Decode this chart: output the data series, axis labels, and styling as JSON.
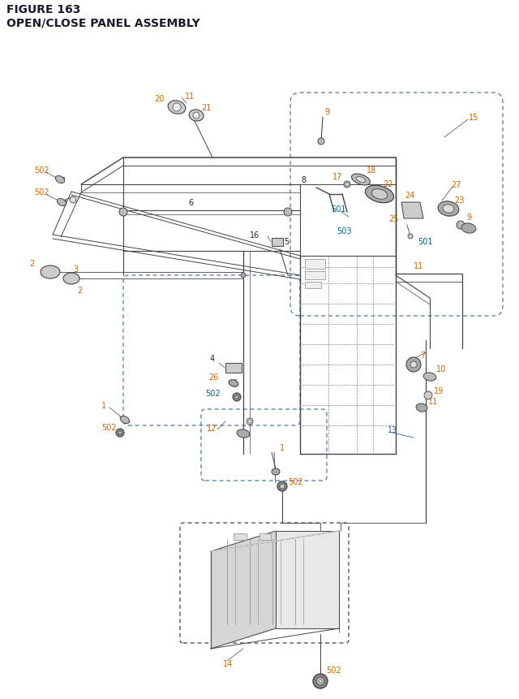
{
  "title_line1": "FIGURE 163",
  "title_line2": "OPEN/CLOSE PANEL ASSEMBLY",
  "bg_color": "#ffffff",
  "title_color": "#1a1a2e",
  "orange": "#cc6600",
  "blue": "#336699",
  "teal": "#006688",
  "black": "#222222",
  "gray": "#444444",
  "lgray": "#888888",
  "figsize": [
    6.4,
    8.62
  ],
  "dpi": 100
}
